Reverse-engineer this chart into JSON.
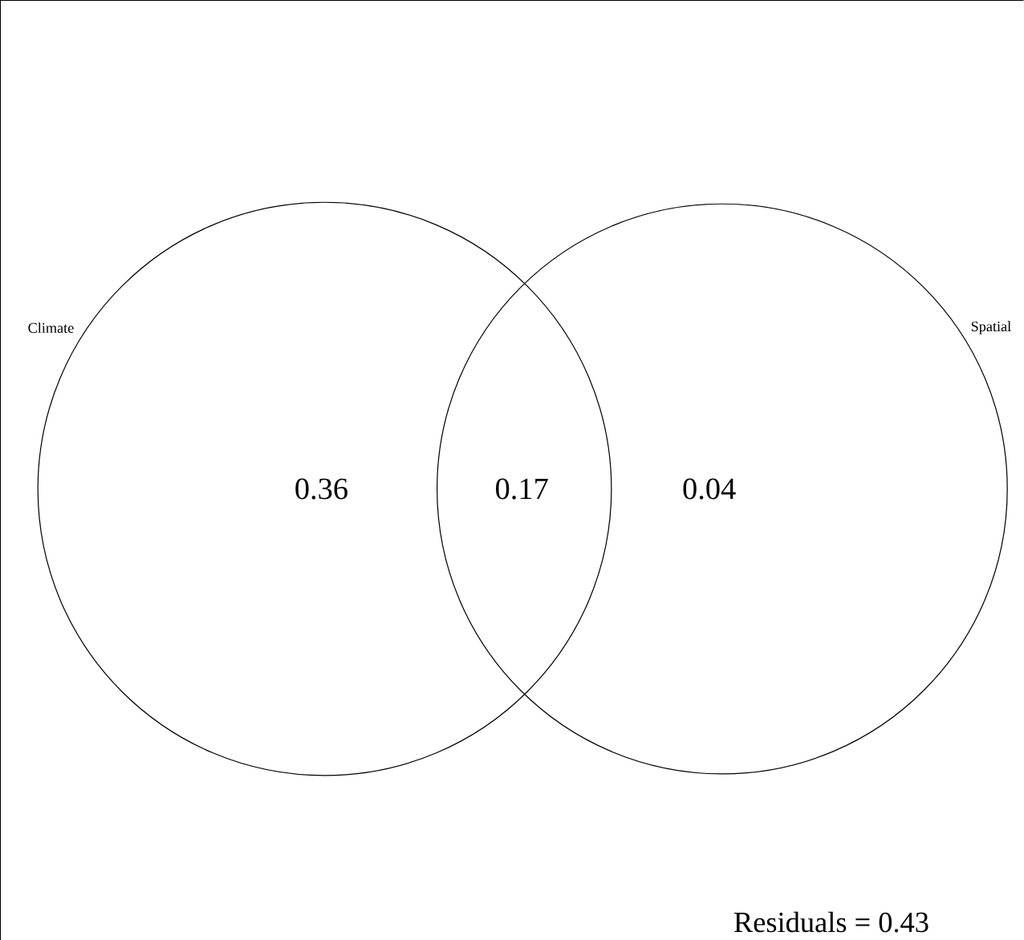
{
  "chart_data": {
    "type": "other",
    "categories": [
      null,
      null,
      null
    ],
    "values": [
      0.36,
      0.17,
      0.04
    ],
    "data_labels": true,
    "annotations": [
      "Climate",
      "Spatial",
      "Residuals = 0.43"
    ]
  }
}
